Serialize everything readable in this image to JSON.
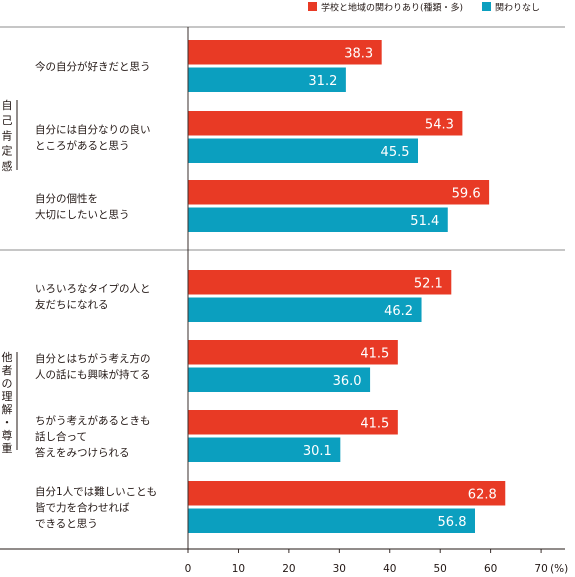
{
  "chart_data": {
    "type": "bar",
    "orientation": "horizontal",
    "title": "",
    "xlabel": "",
    "ylabel": "",
    "unit_label": "(%)",
    "xlim": [
      0,
      70
    ],
    "xticks": [
      0,
      10,
      20,
      30,
      40,
      50,
      60,
      70
    ],
    "grid": false,
    "legend_position": "top-right",
    "series": [
      {
        "name": "学校と地域の関わりあり(種類・多)",
        "color": "#e83a25",
        "values": [
          38.3,
          54.3,
          59.6,
          52.1,
          41.5,
          41.5,
          62.8
        ]
      },
      {
        "name": "関わりなし",
        "color": "#0b9fbf",
        "values": [
          31.2,
          45.5,
          51.4,
          46.2,
          36.0,
          30.1,
          56.8
        ]
      }
    ],
    "value_labels": [
      [
        "38.3",
        "31.2"
      ],
      [
        "54.3",
        "45.5"
      ],
      [
        "59.6",
        "51.4"
      ],
      [
        "52.1",
        "46.2"
      ],
      [
        "41.5",
        "36.0"
      ],
      [
        "41.5",
        "30.1"
      ],
      [
        "62.8",
        "56.8"
      ]
    ],
    "categories": [
      [
        "今の自分が好きだと思う"
      ],
      [
        "自分には自分なりの良い",
        "ところがあると思う"
      ],
      [
        "自分の個性を",
        "大切にしたいと思う"
      ],
      [
        "いろいろなタイプの人と",
        "友だちになれる"
      ],
      [
        "自分とはちがう考え方の",
        "人の話にも興味が持てる"
      ],
      [
        "ちがう考えがあるときも",
        "話し合って",
        "答えをみつけられる"
      ],
      [
        "自分1人では難しいことも",
        "皆で力を合わせれば",
        "できると思う"
      ]
    ],
    "groups": [
      {
        "label": "自己肯定感",
        "categories": [
          0,
          1,
          2
        ]
      },
      {
        "label": "他者の理解・尊重",
        "categories": [
          3,
          4,
          5,
          6
        ]
      }
    ]
  }
}
